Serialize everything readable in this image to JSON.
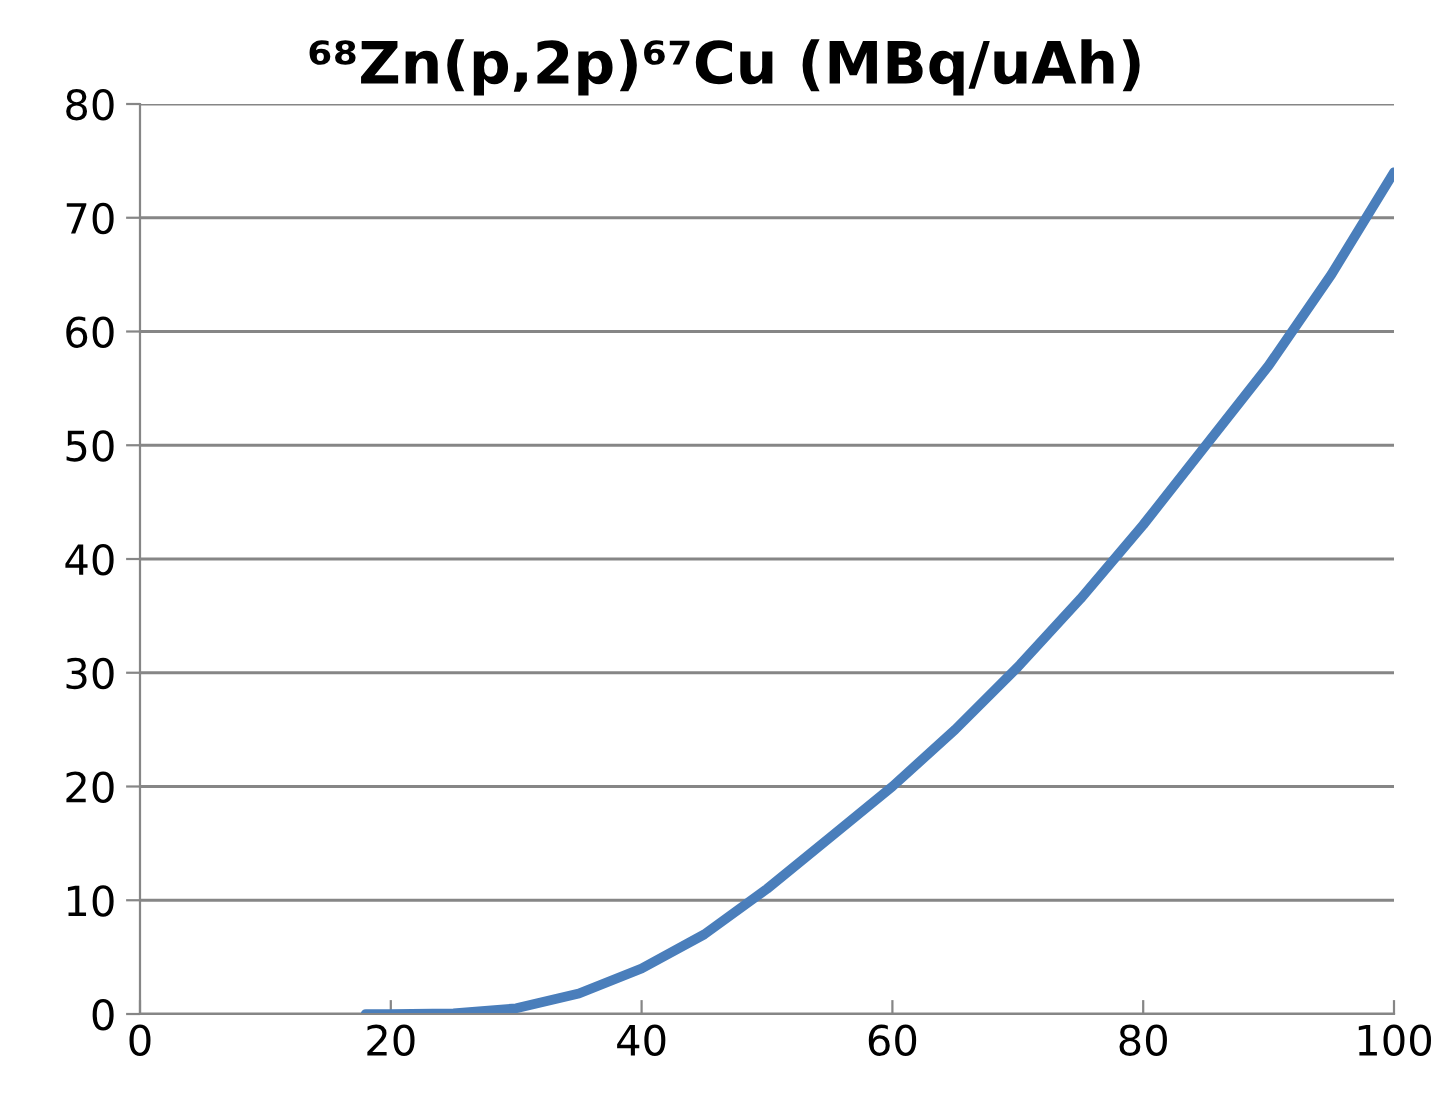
{
  "chart_data": {
    "type": "line",
    "title": "⁶⁸Zn(p,2p)⁶⁷Cu (MBq/uAh)",
    "x": [
      18,
      20,
      25,
      30,
      35,
      40,
      45,
      50,
      55,
      60,
      65,
      70,
      75,
      80,
      85,
      90,
      95,
      100
    ],
    "series": [
      {
        "color": "#4a7ebb",
        "values": [
          0,
          0,
          0.05,
          0.5,
          1.8,
          4,
          7,
          11,
          15.5,
          20,
          25,
          30.5,
          36.5,
          43,
          50,
          57,
          65,
          74
        ]
      }
    ],
    "xlim": [
      0,
      100
    ],
    "xticks": [
      0,
      20,
      40,
      60,
      80,
      100
    ],
    "ylim": [
      0,
      80
    ],
    "yticks": [
      0,
      10,
      20,
      30,
      40,
      50,
      60,
      70,
      80
    ],
    "grid": "y",
    "line_style": "solid",
    "marker": "none"
  }
}
